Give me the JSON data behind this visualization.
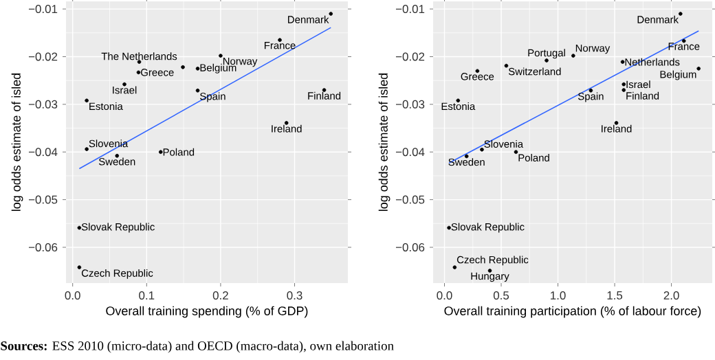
{
  "chart_data": [
    {
      "type": "scatter",
      "xlabel": "Overall training spending (% of GDP)",
      "ylabel": "log odds estimate of isled",
      "xlim": [
        -0.009,
        0.372
      ],
      "ylim": [
        -0.0675,
        -0.0084
      ],
      "xticks": [
        {
          "value": 0,
          "label": "0.0"
        },
        {
          "value": 0.1,
          "label": "0.1"
        },
        {
          "value": 0.2,
          "label": "0.2"
        },
        {
          "value": 0.3,
          "label": "0.3"
        }
      ],
      "yticks": [
        {
          "value": -0.06,
          "label": "−0.06"
        },
        {
          "value": -0.05,
          "label": "−0.05"
        },
        {
          "value": -0.04,
          "label": "−0.04"
        },
        {
          "value": -0.03,
          "label": "−0.03"
        },
        {
          "value": -0.02,
          "label": "−0.02"
        },
        {
          "value": -0.01,
          "label": "−0.01"
        }
      ],
      "grid": true,
      "series": [
        {
          "color": "#000000",
          "x": [
            0.349,
            0.28,
            0.09,
            0.2,
            0.089,
            0.169,
            0.07,
            0.019,
            0.169,
            0.34,
            0.289,
            0.019,
            0.119,
            0.06,
            0.009,
            0.009,
            0.149
          ],
          "values": [
            -0.011,
            -0.0165,
            -0.0211,
            -0.0198,
            -0.0233,
            -0.0225,
            -0.0258,
            -0.0292,
            -0.0271,
            -0.027,
            -0.0339,
            -0.0394,
            -0.04,
            -0.0408,
            -0.0559,
            -0.0642,
            -0.0222
          ]
        },
        {
          "type": "line",
          "color": "#3366ff",
          "x": [
            0.009,
            0.349
          ],
          "values": [
            -0.0435,
            -0.0139
          ]
        }
      ],
      "annotations": [
        {
          "text": "Denmark",
          "x": 0.349,
          "y": -0.011
        },
        {
          "text": "France",
          "x": 0.28,
          "y": -0.0165
        },
        {
          "text": "The Netherlands",
          "x": 0.09,
          "y": -0.0211
        },
        {
          "text": "Norway",
          "x": 0.2,
          "y": -0.0198
        },
        {
          "text": "Greece",
          "x": 0.089,
          "y": -0.0233
        },
        {
          "text": "Belgium",
          "x": 0.169,
          "y": -0.0225
        },
        {
          "text": "Israel",
          "x": 0.07,
          "y": -0.0258
        },
        {
          "text": "Estonia",
          "x": 0.019,
          "y": -0.0292
        },
        {
          "text": "Spain",
          "x": 0.169,
          "y": -0.0271
        },
        {
          "text": "Finland",
          "x": 0.34,
          "y": -0.027
        },
        {
          "text": "Ireland",
          "x": 0.289,
          "y": -0.0339
        },
        {
          "text": "Slovenia",
          "x": 0.019,
          "y": -0.0394
        },
        {
          "text": "Poland",
          "x": 0.119,
          "y": -0.04
        },
        {
          "text": "Sweden",
          "x": 0.06,
          "y": -0.0408
        },
        {
          "text": "Slovak Republic",
          "x": 0.009,
          "y": -0.0559
        },
        {
          "text": "Czech Republic",
          "x": 0.009,
          "y": -0.0642
        },
        "**Sources:** ESS 2010 (micro-data) and OECD (macro-data), own elaboration"
      ]
    },
    {
      "type": "scatter",
      "xlabel": "Overall training participation (% of labour force)",
      "ylabel": "log odds estimate of isled",
      "xlim": [
        -0.1,
        2.36
      ],
      "ylim": [
        -0.0675,
        -0.0084
      ],
      "xticks": [
        {
          "value": 0,
          "label": "0.0"
        },
        {
          "value": 0.5,
          "label": "0.5"
        },
        {
          "value": 1,
          "label": "1.0"
        },
        {
          "value": 1.5,
          "label": "1.5"
        },
        {
          "value": 2,
          "label": "2.0"
        }
      ],
      "yticks": [
        {
          "value": -0.06,
          "label": "−0.06"
        },
        {
          "value": -0.05,
          "label": "−0.05"
        },
        {
          "value": -0.04,
          "label": "−0.04"
        },
        {
          "value": -0.03,
          "label": "−0.03"
        },
        {
          "value": -0.02,
          "label": "−0.02"
        },
        {
          "value": -0.01,
          "label": "−0.01"
        }
      ],
      "grid": true,
      "series": [
        {
          "color": "#000000",
          "x": [
            2.08,
            2.11,
            0.9,
            1.135,
            1.57,
            2.24,
            0.29,
            0.545,
            1.58,
            1.58,
            1.29,
            0.12,
            1.515,
            0.33,
            0.63,
            0.195,
            0.04,
            0.09,
            0.4
          ],
          "values": [
            -0.011,
            -0.0167,
            -0.0208,
            -0.0198,
            -0.0211,
            -0.0225,
            -0.023,
            -0.0219,
            -0.0258,
            -0.027,
            -0.0271,
            -0.0292,
            -0.0339,
            -0.0395,
            -0.04,
            -0.0409,
            -0.0559,
            -0.0642,
            -0.0649
          ]
        },
        {
          "type": "line",
          "color": "#3366ff",
          "x": [
            0.04,
            2.24
          ],
          "values": [
            -0.0423,
            -0.0146
          ]
        }
      ],
      "annotations": [
        {
          "text": "Denmark",
          "x": 2.08,
          "y": -0.011
        },
        {
          "text": "France",
          "x": 2.11,
          "y": -0.0167
        },
        {
          "text": "Portugal",
          "x": 0.9,
          "y": -0.0208
        },
        {
          "text": "Norway",
          "x": 1.135,
          "y": -0.0198
        },
        {
          "text": "Netherlands",
          "x": 1.57,
          "y": -0.0211
        },
        {
          "text": "Belgium",
          "x": 2.24,
          "y": -0.0225
        },
        {
          "text": "Greece",
          "x": 0.29,
          "y": -0.023
        },
        {
          "text": "Switzerland",
          "x": 0.545,
          "y": -0.0219
        },
        {
          "text": "Israel",
          "x": 1.58,
          "y": -0.0258
        },
        {
          "text": "Finland",
          "x": 1.58,
          "y": -0.027
        },
        {
          "text": "Spain",
          "x": 1.29,
          "y": -0.0271
        },
        {
          "text": "Estonia",
          "x": 0.12,
          "y": -0.0292
        },
        {
          "text": "Ireland",
          "x": 1.515,
          "y": -0.0339
        },
        {
          "text": "Slovenia",
          "x": 0.33,
          "y": -0.0395
        },
        {
          "text": "Poland",
          "x": 0.63,
          "y": -0.04
        },
        {
          "text": "Sweden",
          "x": 0.195,
          "y": -0.0409
        },
        {
          "text": "Slovak Republic",
          "x": 0.04,
          "y": -0.0559
        },
        {
          "text": "Czech Republic",
          "x": 0.09,
          "y": -0.0642
        },
        {
          "text": "Hungary",
          "x": 0.4,
          "y": -0.0649
        }
      ]
    }
  ]
}
